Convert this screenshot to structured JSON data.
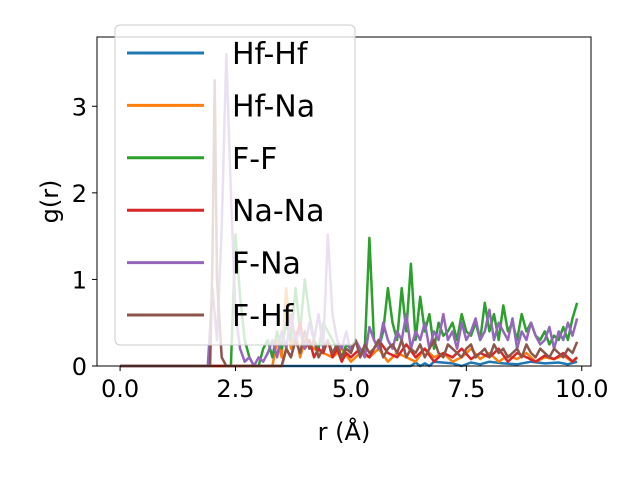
{
  "chart_data": {
    "type": "line",
    "title": "",
    "xlabel": "r (Å)",
    "ylabel": "g(r)",
    "xlim": [
      -0.5,
      10.2
    ],
    "ylim": [
      0,
      3.8
    ],
    "xticks": [
      0.0,
      2.5,
      5.0,
      7.5,
      10.0
    ],
    "xtick_labels": [
      "0.0",
      "2.5",
      "5.0",
      "7.5",
      "10.0"
    ],
    "yticks": [
      0,
      1,
      2,
      3
    ],
    "ytick_labels": [
      "0",
      "1",
      "2",
      "3"
    ],
    "grid": false,
    "legend_position": "top-left",
    "series": [
      {
        "name": "Hf-Hf",
        "color": "#1f77b4",
        "x": [
          0,
          6.3,
          6.4,
          6.5,
          6.6,
          6.7,
          6.8,
          7.2,
          7.4,
          7.6,
          7.8,
          8.0,
          8.3,
          8.6,
          8.9,
          9.2,
          9.5,
          9.7,
          9.9
        ],
        "y": [
          0,
          0,
          0.04,
          0,
          0.03,
          0,
          0.05,
          0.03,
          0,
          0.04,
          0.02,
          0.05,
          0.03,
          0.02,
          0.05,
          0.03,
          0.04,
          0.02,
          0.05
        ]
      },
      {
        "name": "Hf-Na",
        "color": "#ff7f0e",
        "x": [
          0,
          3.3,
          3.4,
          3.5,
          3.6,
          3.7,
          3.8,
          3.9,
          4.0,
          4.2,
          4.4,
          4.6,
          4.8,
          5.0,
          5.2,
          5.4,
          5.6,
          5.8,
          6.0,
          6.2,
          6.4,
          6.6,
          6.8,
          7.0,
          7.2,
          7.4,
          7.6,
          7.8,
          8.0,
          8.2,
          8.4,
          8.6,
          8.8,
          9.0,
          9.2,
          9.4,
          9.6,
          9.8,
          9.9
        ],
        "y": [
          0,
          0,
          0.3,
          0.1,
          0.9,
          0.2,
          0.4,
          0.1,
          0.3,
          0.2,
          0.15,
          0.1,
          0.2,
          0.05,
          0.15,
          0.1,
          0.2,
          0.05,
          0.15,
          0.1,
          0.05,
          0.2,
          0.1,
          0.15,
          0.05,
          0.1,
          0.2,
          0.08,
          0.15,
          0.05,
          0.12,
          0.08,
          0.15,
          0.05,
          0.1,
          0.08,
          0.12,
          0.05,
          0.1
        ]
      },
      {
        "name": "F-F",
        "color": "#2ca02c",
        "x": [
          0,
          2.4,
          2.5,
          2.6,
          2.7,
          2.8,
          2.9,
          3.0,
          3.1,
          3.2,
          3.3,
          3.4,
          3.5,
          3.6,
          3.7,
          3.8,
          3.9,
          4.0,
          4.1,
          4.2,
          4.3,
          4.4,
          4.5,
          4.6,
          4.7,
          4.8,
          4.9,
          5.0,
          5.1,
          5.2,
          5.3,
          5.4,
          5.5,
          5.6,
          5.7,
          5.8,
          5.9,
          6.0,
          6.1,
          6.2,
          6.3,
          6.4,
          6.5,
          6.6,
          6.7,
          6.8,
          6.9,
          7.0,
          7.1,
          7.2,
          7.3,
          7.4,
          7.5,
          7.6,
          7.7,
          7.8,
          7.9,
          8.0,
          8.1,
          8.2,
          8.3,
          8.4,
          8.5,
          8.6,
          8.7,
          8.8,
          8.9,
          9.0,
          9.1,
          9.2,
          9.3,
          9.4,
          9.5,
          9.6,
          9.7,
          9.8,
          9.9
        ],
        "y": [
          0,
          0,
          1.52,
          0.8,
          0.3,
          0.1,
          0.0,
          0.0,
          0.2,
          0.3,
          0.1,
          0.4,
          0.2,
          0.5,
          0.3,
          0.9,
          0.4,
          1.0,
          0.6,
          0.3,
          0.2,
          0.5,
          0.4,
          0.3,
          0.2,
          0.1,
          0.25,
          0.2,
          0.3,
          0.15,
          0.2,
          1.48,
          0.3,
          0.2,
          0.4,
          0.9,
          0.5,
          0.3,
          0.9,
          0.4,
          1.18,
          0.3,
          0.8,
          0.4,
          0.6,
          0.2,
          0.5,
          0.35,
          0.4,
          0.5,
          0.3,
          0.6,
          0.4,
          0.35,
          0.5,
          0.3,
          0.73,
          0.4,
          0.6,
          0.3,
          0.7,
          0.4,
          0.5,
          0.3,
          0.6,
          0.4,
          0.5,
          0.35,
          0.3,
          0.4,
          0.25,
          0.35,
          0.3,
          0.45,
          0.3,
          0.55,
          0.73
        ]
      },
      {
        "name": "Na-Na",
        "color": "#d62728",
        "x": [
          0,
          3.5,
          3.6,
          3.7,
          3.8,
          3.9,
          4.0,
          4.1,
          4.2,
          4.3,
          4.4,
          4.5,
          4.6,
          4.7,
          4.8,
          4.9,
          5.0,
          5.2,
          5.4,
          5.6,
          5.8,
          6.0,
          6.2,
          6.4,
          6.6,
          6.8,
          7.0,
          7.2,
          7.4,
          7.6,
          7.8,
          8.0,
          8.2,
          8.4,
          8.6,
          8.8,
          9.0,
          9.2,
          9.4,
          9.6,
          9.8,
          9.9
        ],
        "y": [
          0,
          0,
          0.2,
          0.1,
          0.3,
          0.5,
          0.2,
          0.3,
          0.1,
          0.2,
          0.15,
          0.3,
          0.1,
          0.2,
          0.05,
          0.15,
          0.1,
          0.2,
          0.1,
          0.3,
          0.15,
          0.1,
          0.25,
          0.1,
          0.2,
          0.05,
          0.15,
          0.1,
          0.2,
          0.08,
          0.15,
          0.1,
          0.2,
          0.05,
          0.15,
          0.1,
          0.05,
          0.12,
          0.08,
          0.15,
          0.05,
          0.1
        ]
      },
      {
        "name": "F-Na",
        "color": "#9467bd",
        "x": [
          0,
          1.9,
          2.0,
          2.1,
          2.2,
          2.3,
          2.4,
          2.5,
          2.6,
          2.7,
          2.8,
          2.9,
          3.0,
          3.1,
          3.2,
          3.3,
          3.4,
          3.5,
          3.6,
          3.7,
          3.8,
          3.9,
          4.0,
          4.1,
          4.2,
          4.3,
          4.4,
          4.5,
          4.6,
          4.7,
          4.8,
          4.9,
          5.0,
          5.1,
          5.2,
          5.3,
          5.4,
          5.5,
          5.6,
          5.7,
          5.8,
          5.9,
          6.0,
          6.1,
          6.2,
          6.3,
          6.4,
          6.5,
          6.6,
          6.7,
          6.8,
          6.9,
          7.0,
          7.1,
          7.2,
          7.3,
          7.4,
          7.5,
          7.6,
          7.7,
          7.8,
          7.9,
          8.0,
          8.1,
          8.2,
          8.3,
          8.4,
          8.5,
          8.6,
          8.7,
          8.8,
          8.9,
          9.0,
          9.1,
          9.2,
          9.3,
          9.4,
          9.5,
          9.6,
          9.7,
          9.8,
          9.9
        ],
        "y": [
          0,
          0,
          0.9,
          0.3,
          1.6,
          3.6,
          2.0,
          0.6,
          0.2,
          0.05,
          0.1,
          0.0,
          0.1,
          0.05,
          0.15,
          0.3,
          0.1,
          0.4,
          0.2,
          0.6,
          0.3,
          0.4,
          0.2,
          0.5,
          0.3,
          0.6,
          0.2,
          1.52,
          0.6,
          0.3,
          0.2,
          0.4,
          0.15,
          0.3,
          0.2,
          0.1,
          0.45,
          0.3,
          0.2,
          0.5,
          0.3,
          0.2,
          0.4,
          0.3,
          0.6,
          0.2,
          0.4,
          0.3,
          0.5,
          0.2,
          0.4,
          0.3,
          0.6,
          0.3,
          0.4,
          0.2,
          0.5,
          0.3,
          0.4,
          0.55,
          0.3,
          0.4,
          0.65,
          0.3,
          0.5,
          0.4,
          0.3,
          0.55,
          0.2,
          0.4,
          0.3,
          0.5,
          0.35,
          0.25,
          0.3,
          0.45,
          0.2,
          0.4,
          0.3,
          0.5,
          0.35,
          0.55
        ]
      },
      {
        "name": "F-Hf",
        "color": "#8c564b",
        "x": [
          0,
          1.95,
          2.0,
          2.05,
          2.1,
          2.2,
          2.3,
          2.5,
          3.0,
          3.5,
          3.6,
          3.7,
          3.8,
          3.9,
          4.0,
          4.1,
          4.2,
          4.3,
          4.4,
          4.5,
          4.6,
          4.7,
          4.8,
          4.9,
          5.0,
          5.1,
          5.2,
          5.3,
          5.4,
          5.5,
          5.6,
          5.7,
          5.8,
          5.9,
          6.0,
          6.1,
          6.2,
          6.3,
          6.4,
          6.5,
          6.6,
          6.7,
          6.8,
          6.9,
          7.0,
          7.1,
          7.2,
          7.3,
          7.4,
          7.5,
          7.6,
          7.7,
          7.8,
          7.9,
          8.0,
          8.1,
          8.2,
          8.3,
          8.4,
          8.5,
          8.6,
          8.7,
          8.8,
          8.9,
          9.0,
          9.1,
          9.2,
          9.3,
          9.4,
          9.5,
          9.6,
          9.7,
          9.8,
          9.9
        ],
        "y": [
          0,
          0,
          1.2,
          3.3,
          1.0,
          0.1,
          0.0,
          0.0,
          0.0,
          0.0,
          0.2,
          0.1,
          0.3,
          0.15,
          0.4,
          0.2,
          0.3,
          0.1,
          0.2,
          0.3,
          0.15,
          0.25,
          0.1,
          0.2,
          0.15,
          0.3,
          0.1,
          0.25,
          0.15,
          0.2,
          0.3,
          0.1,
          0.2,
          0.25,
          0.15,
          0.3,
          0.1,
          0.2,
          0.15,
          0.25,
          0.1,
          0.2,
          0.3,
          0.15,
          0.1,
          0.25,
          0.2,
          0.15,
          0.1,
          0.2,
          0.25,
          0.1,
          0.15,
          0.2,
          0.1,
          0.25,
          0.15,
          0.2,
          0.1,
          0.15,
          0.2,
          0.1,
          0.25,
          0.15,
          0.1,
          0.2,
          0.15,
          0.1,
          0.2,
          0.15,
          0.1,
          0.2,
          0.15,
          0.28
        ]
      }
    ]
  }
}
